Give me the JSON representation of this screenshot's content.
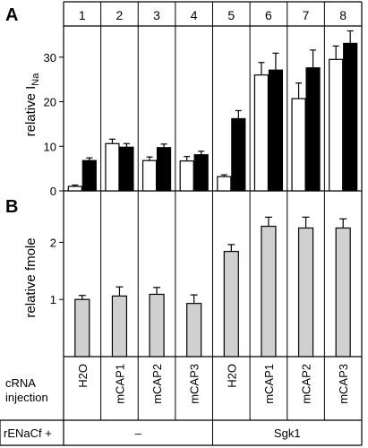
{
  "panels": {
    "a_letter": "A",
    "b_letter": "B"
  },
  "columns": [
    "1",
    "2",
    "3",
    "4",
    "5",
    "6",
    "7",
    "8"
  ],
  "row_labels": {
    "crna_line1": "cRNA",
    "crna_line2": "injection",
    "renac": "rENaCf +"
  },
  "crna_injections": [
    "H2O",
    "mCAP1",
    "mCAP2",
    "mCAP3",
    "H2O",
    "mCAP1",
    "mCAP2",
    "mCAP3"
  ],
  "groups": [
    {
      "label": "–",
      "columns": [
        1,
        2,
        3,
        4
      ]
    },
    {
      "label": "Sgk1",
      "columns": [
        5,
        6,
        7,
        8
      ]
    }
  ],
  "colors": {
    "open_bar": "#ffffff",
    "filled_bar": "#000000",
    "gray_bar": "#d0d0d0",
    "line": "#000000"
  },
  "chart_data": [
    {
      "panel": "A",
      "type": "bar",
      "ylabel_main": "relative I",
      "ylabel_sub": "Na",
      "ylim": [
        0,
        37
      ],
      "yticks": [
        0,
        10,
        20,
        30
      ],
      "categories": [
        "1",
        "2",
        "3",
        "4",
        "5",
        "6",
        "7",
        "8"
      ],
      "series": [
        {
          "values": [
            1.0,
            10.6,
            6.8,
            6.7,
            3.2,
            26.0,
            20.7,
            29.5
          ],
          "errors": [
            0.3,
            1.0,
            0.8,
            1.0,
            0.4,
            2.8,
            3.5,
            3.0
          ],
          "fill": "open"
        },
        {
          "values": [
            6.8,
            9.8,
            9.7,
            8.1,
            16.2,
            27.1,
            27.6,
            33.1
          ],
          "errors": [
            0.6,
            0.8,
            0.8,
            0.8,
            1.8,
            3.8,
            4.0,
            2.8
          ],
          "fill": "filled"
        }
      ]
    },
    {
      "panel": "B",
      "type": "bar",
      "ylabel": "relative fmole",
      "ylim": [
        0,
        2.9
      ],
      "yticks": [
        1,
        2
      ],
      "categories": [
        "1",
        "2",
        "3",
        "4",
        "5",
        "6",
        "7",
        "8"
      ],
      "values": [
        1.0,
        1.06,
        1.09,
        0.93,
        1.84,
        2.28,
        2.25,
        2.25
      ],
      "errors": [
        0.07,
        0.16,
        0.12,
        0.15,
        0.12,
        0.16,
        0.19,
        0.16
      ]
    }
  ]
}
